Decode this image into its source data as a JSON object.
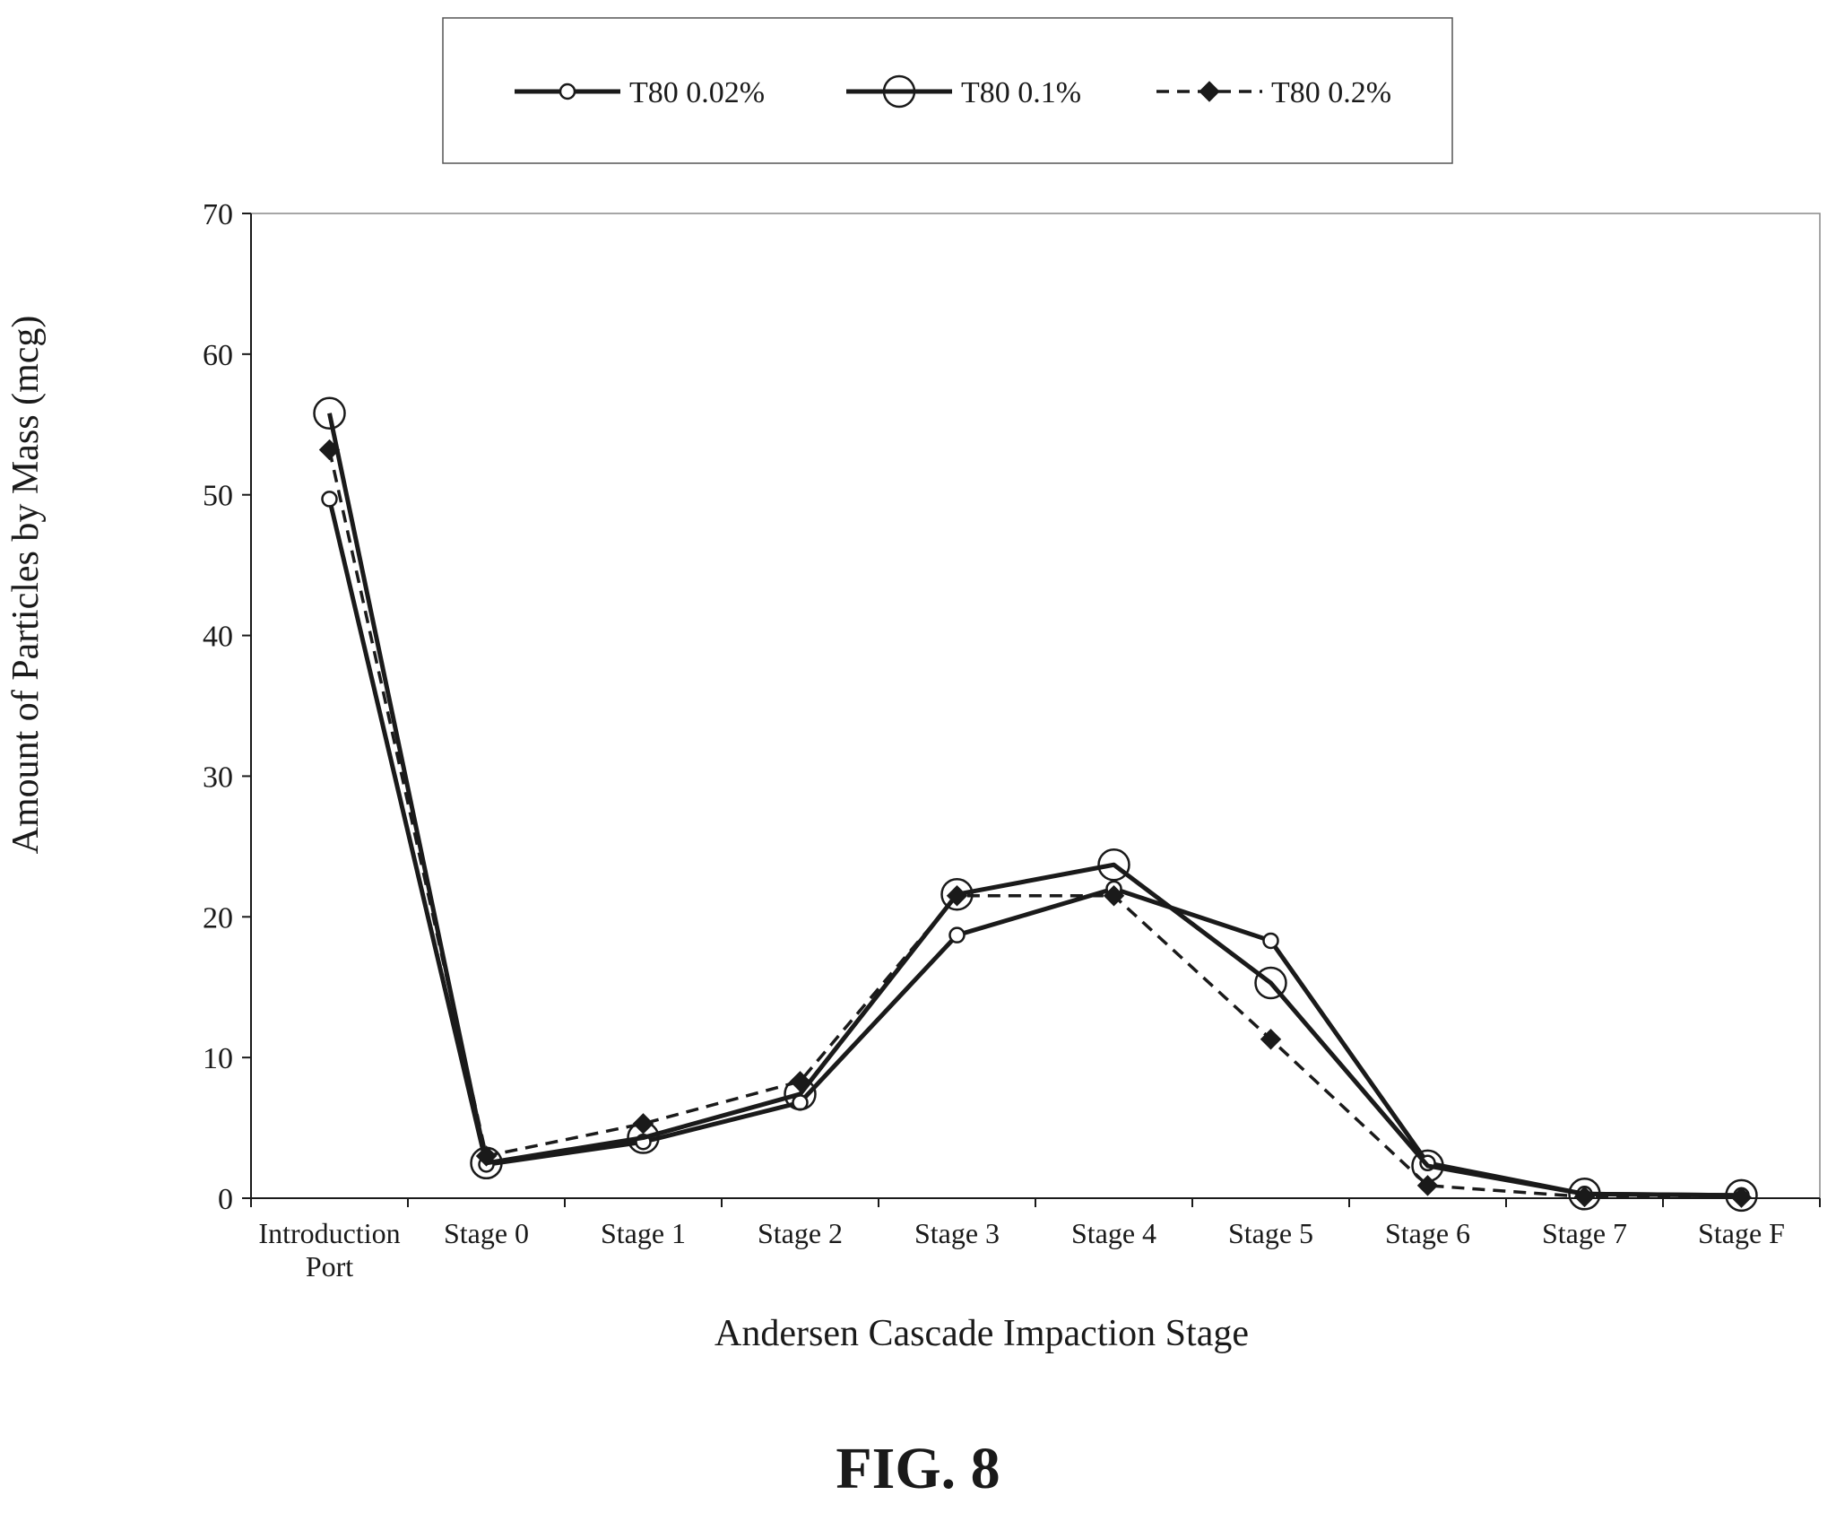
{
  "figure_label": "FIG. 8",
  "colors": {
    "ink": "#1a1a1a",
    "background": "#ffffff"
  },
  "chart_data": {
    "type": "line",
    "title": "",
    "xlabel": "Andersen Cascade Impaction Stage",
    "ylabel": "Amount of Particles by Mass (mcg)",
    "ylim": [
      0,
      70
    ],
    "yticks": [
      0,
      10,
      20,
      30,
      40,
      50,
      60,
      70
    ],
    "grid": false,
    "legend_position": "top",
    "categories": [
      [
        "Introduction",
        "Port"
      ],
      [
        "Stage 0"
      ],
      [
        "Stage 1"
      ],
      [
        "Stage 2"
      ],
      [
        "Stage 3"
      ],
      [
        "Stage 4"
      ],
      [
        "Stage 5"
      ],
      [
        "Stage 6"
      ],
      [
        "Stage 7"
      ],
      [
        "Stage F"
      ]
    ],
    "series": [
      {
        "name": "T80 0.02%",
        "marker": "small-open-circle",
        "line": "solid",
        "values": [
          49.7,
          2.4,
          4.0,
          6.8,
          18.7,
          22.0,
          18.3,
          2.5,
          0.3,
          0.2
        ]
      },
      {
        "name": "T80 0.1%",
        "marker": "large-open-circle",
        "line": "solid",
        "values": [
          55.8,
          2.5,
          4.3,
          7.4,
          21.6,
          23.7,
          15.3,
          2.3,
          0.3,
          0.2
        ]
      },
      {
        "name": "T80 0.2%",
        "marker": "filled-diamond",
        "line": "dashed",
        "values": [
          53.2,
          3.0,
          5.3,
          8.3,
          21.5,
          21.5,
          11.3,
          0.9,
          0.1,
          0.05
        ]
      }
    ]
  }
}
